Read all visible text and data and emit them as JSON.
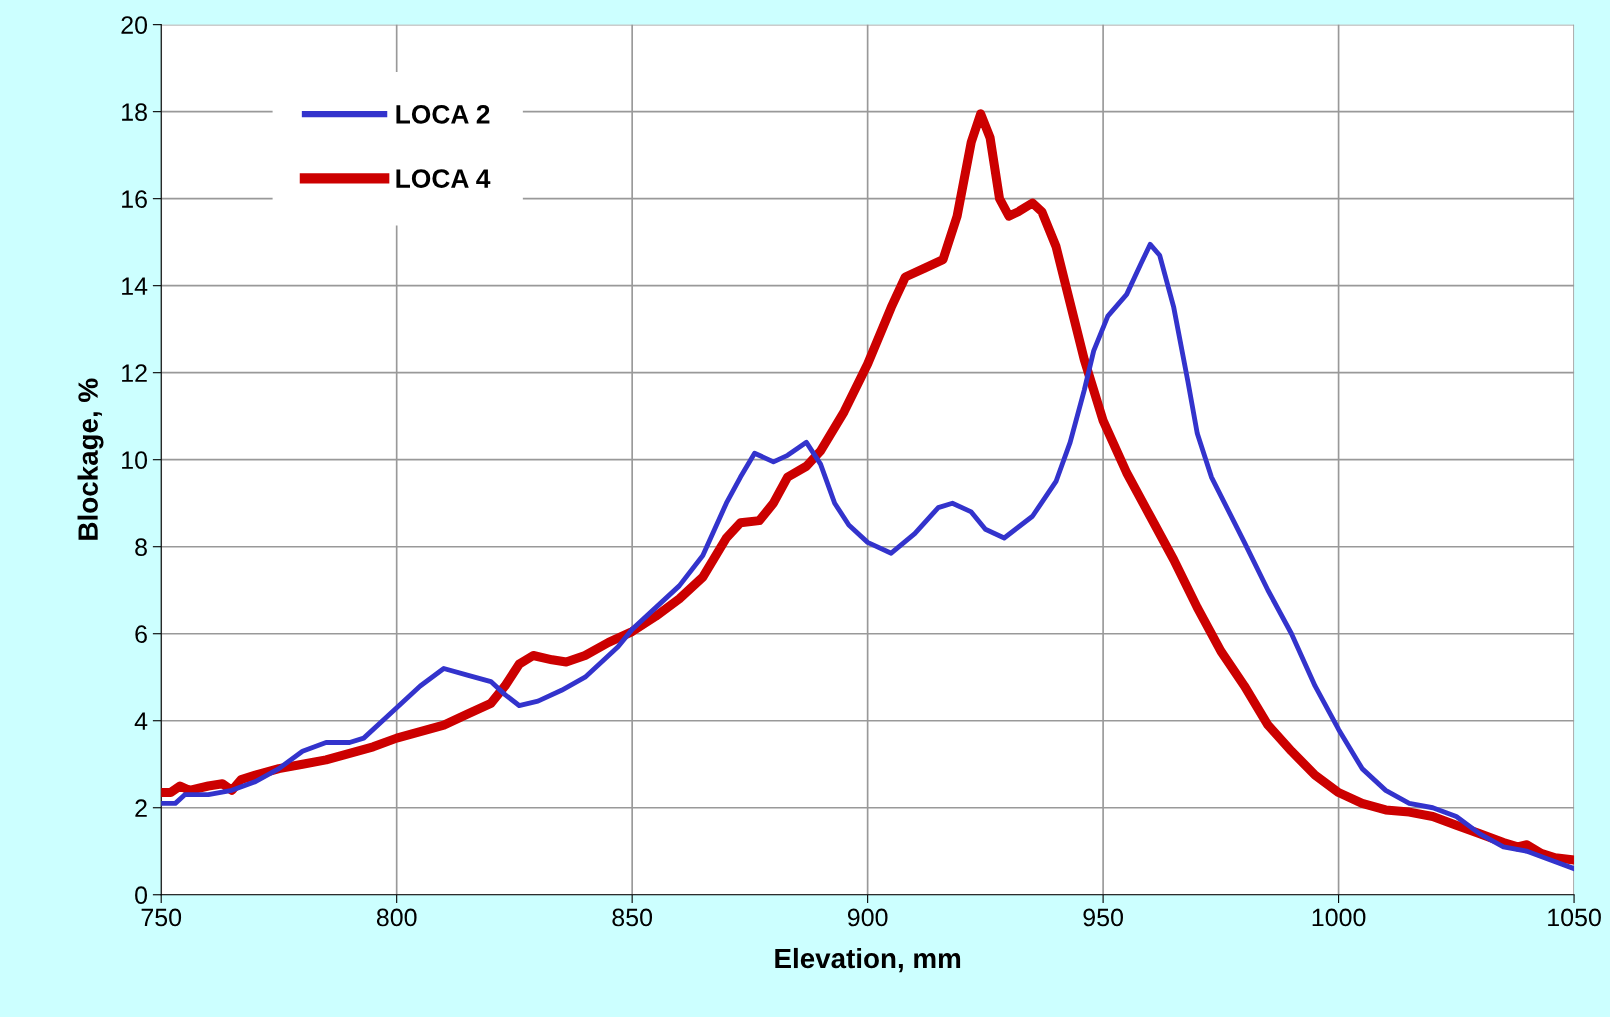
{
  "chart_data": {
    "type": "line",
    "xlabel": "Elevation, mm",
    "ylabel": "Blockage, %",
    "xlim": [
      750,
      1050
    ],
    "xticks": [
      750,
      800,
      850,
      900,
      950,
      1000,
      1050
    ],
    "ylim": [
      0,
      20
    ],
    "yticks": [
      0,
      2,
      4,
      6,
      8,
      10,
      12,
      14,
      16,
      18,
      20
    ],
    "grid": true,
    "legend": "top left",
    "marker": "none",
    "line_style": "solid",
    "series": [
      {
        "name": "LOCA 2",
        "color": "#3333cc",
        "x": [
          750,
          753,
          755,
          760,
          765,
          770,
          775,
          780,
          785,
          790,
          793,
          800,
          805,
          810,
          815,
          820,
          823,
          826,
          830,
          835,
          840,
          845,
          847,
          850,
          855,
          860,
          865,
          870,
          873,
          876,
          880,
          883,
          887,
          890,
          893,
          896,
          900,
          905,
          910,
          915,
          918,
          922,
          925,
          929,
          935,
          940,
          943,
          946,
          948,
          951,
          955,
          958,
          960,
          962,
          965,
          968,
          970,
          973,
          980,
          985,
          990,
          995,
          1000,
          1005,
          1010,
          1015,
          1020,
          1025,
          1030,
          1035,
          1040,
          1045,
          1050
        ],
        "values": [
          2.1,
          2.1,
          2.3,
          2.3,
          2.4,
          2.6,
          2.9,
          3.3,
          3.5,
          3.5,
          3.6,
          4.3,
          4.8,
          5.2,
          5.05,
          4.9,
          4.6,
          4.35,
          4.45,
          4.7,
          5.0,
          5.5,
          5.7,
          6.1,
          6.6,
          7.1,
          7.8,
          9.0,
          9.6,
          10.15,
          9.95,
          10.1,
          10.4,
          9.9,
          9.0,
          8.5,
          8.1,
          7.85,
          8.3,
          8.9,
          9.0,
          8.8,
          8.4,
          8.2,
          8.7,
          9.5,
          10.4,
          11.6,
          12.5,
          13.3,
          13.8,
          14.5,
          14.95,
          14.7,
          13.5,
          11.8,
          10.6,
          9.6,
          8.1,
          7.0,
          6.0,
          4.8,
          3.8,
          2.9,
          2.4,
          2.1,
          2.0,
          1.8,
          1.4,
          1.1,
          1.0,
          0.8,
          0.6
        ]
      },
      {
        "name": "LOCA 4",
        "color": "#cc0000",
        "x": [
          750,
          752,
          754,
          756,
          760,
          763,
          765,
          767,
          770,
          775,
          780,
          785,
          790,
          795,
          800,
          805,
          810,
          815,
          820,
          823,
          826,
          829,
          833,
          836,
          840,
          845,
          850,
          855,
          860,
          865,
          870,
          873,
          877,
          880,
          883,
          887,
          890,
          895,
          900,
          905,
          908,
          912,
          916,
          919,
          922,
          924,
          926,
          928,
          930,
          932,
          935,
          937,
          940,
          943,
          946,
          950,
          955,
          960,
          965,
          970,
          975,
          980,
          985,
          990,
          995,
          1000,
          1005,
          1010,
          1015,
          1020,
          1025,
          1030,
          1035,
          1038,
          1040,
          1043,
          1046,
          1050
        ],
        "values": [
          2.35,
          2.35,
          2.5,
          2.4,
          2.5,
          2.55,
          2.4,
          2.65,
          2.75,
          2.9,
          3.0,
          3.1,
          3.25,
          3.4,
          3.6,
          3.75,
          3.9,
          4.15,
          4.4,
          4.8,
          5.3,
          5.5,
          5.4,
          5.35,
          5.5,
          5.8,
          6.05,
          6.4,
          6.8,
          7.3,
          8.2,
          8.55,
          8.6,
          9.0,
          9.6,
          9.85,
          10.2,
          11.1,
          12.2,
          13.5,
          14.2,
          14.4,
          14.6,
          15.6,
          17.3,
          17.95,
          17.4,
          16.0,
          15.6,
          15.7,
          15.9,
          15.7,
          14.9,
          13.6,
          12.3,
          10.9,
          9.7,
          8.7,
          7.7,
          6.6,
          5.6,
          4.8,
          3.9,
          3.3,
          2.75,
          2.35,
          2.1,
          1.95,
          1.9,
          1.8,
          1.6,
          1.4,
          1.2,
          1.1,
          1.15,
          0.95,
          0.85,
          0.8
        ]
      }
    ]
  }
}
